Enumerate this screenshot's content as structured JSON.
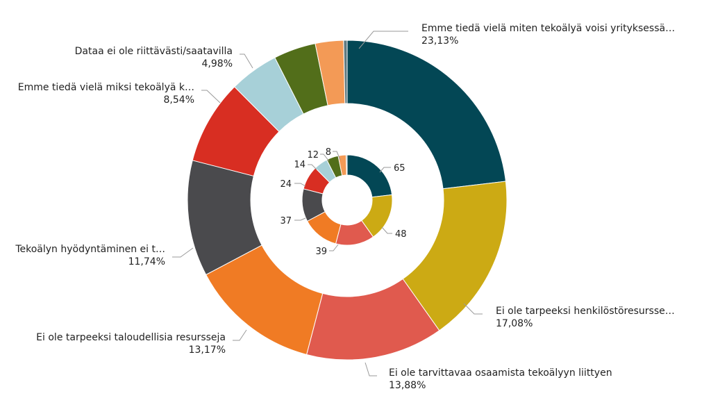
{
  "chart_data": {
    "type": "donut",
    "title": "",
    "outer_ring": {
      "categories": [
        "Emme tiedä vielä miten tekoälyä voisi yrityksessä…",
        "Ei ole tarpeeksi henkilöstöresursse…",
        "Ei ole tarvittavaa osaamista tekoälyyn liittyen",
        "Ei ole tarpeeksi taloudellisia resursseja",
        "Tekoälyn hyödyntäminen ei t…",
        "Emme tiedä vielä miksi tekoälyä k…",
        "Dataa ei ole riittävästi/saatavilla",
        "",
        "",
        ""
      ],
      "values": [
        23.13,
        17.08,
        13.88,
        13.17,
        11.74,
        8.54,
        4.98,
        4.27,
        2.85,
        0.36
      ],
      "value_labels": [
        "23,13%",
        "17,08%",
        "13,88%",
        "13,17%",
        "11,74%",
        "8,54%",
        "4,98%",
        "",
        "",
        ""
      ]
    },
    "inner_ring": {
      "values": [
        65,
        48,
        39,
        37,
        33,
        24,
        14,
        12,
        8,
        1
      ],
      "value_labels": [
        "65",
        "48",
        "39",
        "37",
        "",
        "24",
        "14",
        "12",
        "8",
        ""
      ]
    },
    "colors": [
      "#034755",
      "#ccaa14",
      "#e05a4e",
      "#f07b24",
      "#4a4a4d",
      "#d82e22",
      "#a7d0d8",
      "#526e1a",
      "#f39a56",
      "#5f7a80"
    ]
  }
}
